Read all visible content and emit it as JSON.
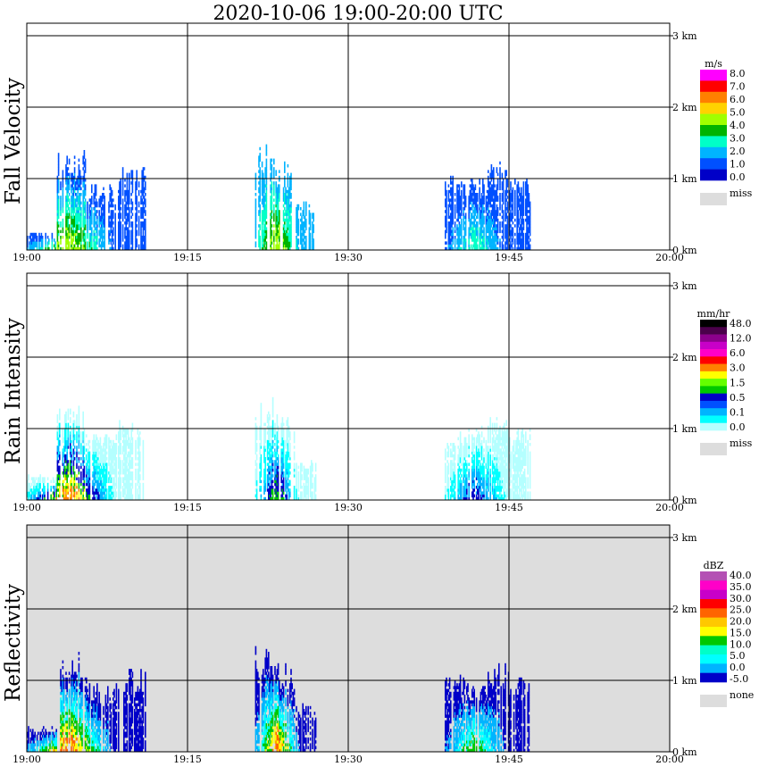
{
  "title": "2020-10-06   19:00-20:00 UTC",
  "x_ticks": [
    "19:00",
    "19:15",
    "19:30",
    "19:45",
    "20:00"
  ],
  "y_ticks": [
    "0 km",
    "1 km",
    "2 km",
    "3 km"
  ],
  "chart_data": [
    {
      "type": "heatmap",
      "ylabel": "Fall Velocity",
      "background": "#ffffff",
      "xlim": [
        0,
        60
      ],
      "ylim": [
        0,
        3.2
      ],
      "colorbar": {
        "unit": "m/s",
        "labels": [
          "8.0",
          "7.0",
          "6.0",
          "5.0",
          "4.0",
          "3.0",
          "2.0",
          "1.0",
          "0.0"
        ],
        "colors": [
          "#ff00ff",
          "#ff0000",
          "#ff8000",
          "#ffd200",
          "#a0ff00",
          "#00b400",
          "#00ffc8",
          "#00b4ff",
          "#0050ff",
          "#0000c8"
        ],
        "miss_label": "miss"
      },
      "blobs": [
        {
          "x0": 0.0,
          "x1": 11.0,
          "top": 1.25,
          "band": [
            [
              0.0,
              3.4
            ],
            [
              3.4,
              7.8
            ],
            [
              7.8,
              11.0
            ]
          ],
          "tops": [
            0.22,
            1.25,
            0.85,
            1.05
          ],
          "palette": [
            "#0050ff",
            "#00b4ff",
            "#00ffc8",
            "#00b400",
            "#a0ff00"
          ]
        },
        {
          "x0": 21.3,
          "x1": 27.0,
          "top": 1.35,
          "tops": [
            1.35,
            1.1,
            0.6
          ],
          "palette": [
            "#00b4ff",
            "#00ffc8",
            "#00b400",
            "#a0ff00"
          ]
        },
        {
          "x0": 39.0,
          "x1": 47.0,
          "top": 1.15,
          "tops": [
            0.95,
            0.92,
            1.15,
            0.95
          ],
          "palette": [
            "#0050ff",
            "#00b4ff",
            "#00ffc8"
          ]
        }
      ]
    },
    {
      "type": "heatmap",
      "ylabel": "Rain Intensity",
      "background": "#ffffff",
      "xlim": [
        0,
        60
      ],
      "ylim": [
        0,
        3.2
      ],
      "colorbar": {
        "unit": "mm/hr",
        "labels": [
          "48.0",
          "12.0",
          "6.0",
          "3.0",
          "1.5",
          "0.5",
          "0.1",
          "0.0"
        ],
        "colors": [
          "#000000",
          "#4b004b",
          "#8c008c",
          "#c800c8",
          "#ff00c8",
          "#ff0000",
          "#ff8000",
          "#ffff00",
          "#64ff00",
          "#00c800",
          "#0000c8",
          "#0050ff",
          "#00b4ff",
          "#00ffff",
          "#b4ffff"
        ],
        "miss_label": "miss"
      },
      "blobs": [
        {
          "x0": 0.0,
          "x1": 11.0,
          "top": 1.2,
          "tops": [
            0.3,
            1.2,
            0.85,
            1.0
          ],
          "palette": [
            "#b4ffff",
            "#00ffff",
            "#00b4ff",
            "#0000c8",
            "#00c800",
            "#ffff00",
            "#ff8000"
          ]
        },
        {
          "x0": 21.3,
          "x1": 27.0,
          "top": 1.3,
          "tops": [
            1.3,
            1.1,
            0.5
          ],
          "palette": [
            "#b4ffff",
            "#00ffff",
            "#00b4ff",
            "#0000c8",
            "#00c800"
          ]
        },
        {
          "x0": 39.0,
          "x1": 47.0,
          "top": 1.1,
          "tops": [
            0.9,
            0.92,
            1.1,
            0.9
          ],
          "palette": [
            "#b4ffff",
            "#00ffff",
            "#00b4ff",
            "#0000c8"
          ]
        }
      ]
    },
    {
      "type": "heatmap",
      "ylabel": "Reflectivity",
      "background": "#dddddd",
      "xlim": [
        0,
        60
      ],
      "ylim": [
        0,
        3.2
      ],
      "colorbar": {
        "unit": "dBZ",
        "labels": [
          "40.0",
          "35.0",
          "30.0",
          "25.0",
          "20.0",
          "15.0",
          "10.0",
          "5.0",
          "0.0",
          "-5.0"
        ],
        "colors": [
          "#b450b4",
          "#ff00c8",
          "#c800c8",
          "#ff0000",
          "#ff6400",
          "#ffc800",
          "#ffff00",
          "#00c800",
          "#00ffc8",
          "#00ffff",
          "#00b4ff",
          "#0000c8"
        ],
        "miss_label": "none"
      },
      "blobs": [
        {
          "x0": 0.0,
          "x1": 11.0,
          "top": 1.25,
          "tops": [
            0.3,
            1.25,
            0.85,
            1.05
          ],
          "palette": [
            "#0000c8",
            "#00b4ff",
            "#00ffff",
            "#00c800",
            "#ffff00",
            "#ff6400"
          ]
        },
        {
          "x0": 21.3,
          "x1": 27.0,
          "top": 1.35,
          "tops": [
            1.35,
            1.15,
            0.6
          ],
          "palette": [
            "#0000c8",
            "#00b4ff",
            "#00ffff",
            "#00c800",
            "#ffff00",
            "#ff6400"
          ]
        },
        {
          "x0": 39.0,
          "x1": 47.0,
          "top": 1.15,
          "tops": [
            0.95,
            0.92,
            1.15,
            0.95
          ],
          "palette": [
            "#0000c8",
            "#00b4ff",
            "#00ffff",
            "#00c800"
          ]
        }
      ]
    }
  ]
}
